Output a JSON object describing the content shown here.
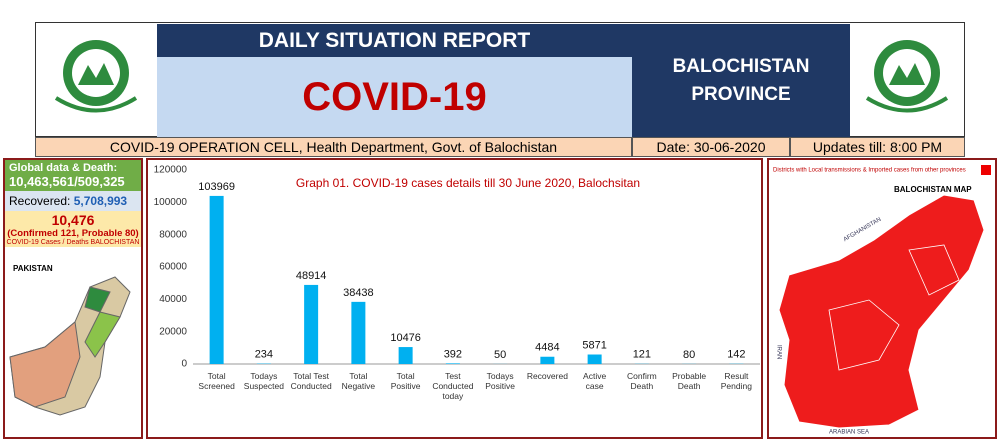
{
  "header": {
    "report_title": "DAILY SITUATION REPORT",
    "main_title": "COVID-19",
    "province": "BALOCHISTAN PROVINCE",
    "cell": "COVID-19 OPERATION CELL, Health Department, Govt. of Balochistan",
    "date": "Date: 30-06-2020",
    "updates": "Updates till: 8:00 PM"
  },
  "left_panel": {
    "global_label": "Global data & Death:",
    "global_value": "10,463,561/509,325",
    "recovered_label": "Recovered:",
    "recovered_value": "5,708,993",
    "cases": "10,476",
    "deaths": "(Confirmed 121, Probable 80)",
    "caption": "COVID-19 Cases / Deaths BALOCHISTAN",
    "map_label": "PAKISTAN"
  },
  "chart_data": {
    "type": "bar",
    "title": "Graph 01. COVID-19 cases details till 30 June 2020, Balochsitan",
    "categories": [
      "Total\nScreened",
      "Todays\nSuspected",
      "Total Test\nConducted",
      "Total\nNegative",
      "Total\nPositive",
      "Test\nConducted\ntoday",
      "Todays\nPositive",
      "Recovered",
      "Active\ncase",
      "Confirm\nDeath",
      "Probable\nDeath",
      "Result\nPending"
    ],
    "values": [
      103969,
      234,
      48914,
      38438,
      10476,
      392,
      50,
      4484,
      5871,
      121,
      80,
      142
    ],
    "color": "#00b0f0",
    "ylim": [
      0,
      120000
    ],
    "yticks": [
      0,
      20000,
      40000,
      60000,
      80000,
      100000,
      120000
    ],
    "grid": false
  },
  "right_panel": {
    "legend": "Districts with Local transmissions & Imported cases from other provinces",
    "map_title": "BALOCHISTAN MAP",
    "neighbor_north": "AFGHANISTAN",
    "neighbor_west": "IRAN",
    "sea": "ARABIAN SEA"
  }
}
